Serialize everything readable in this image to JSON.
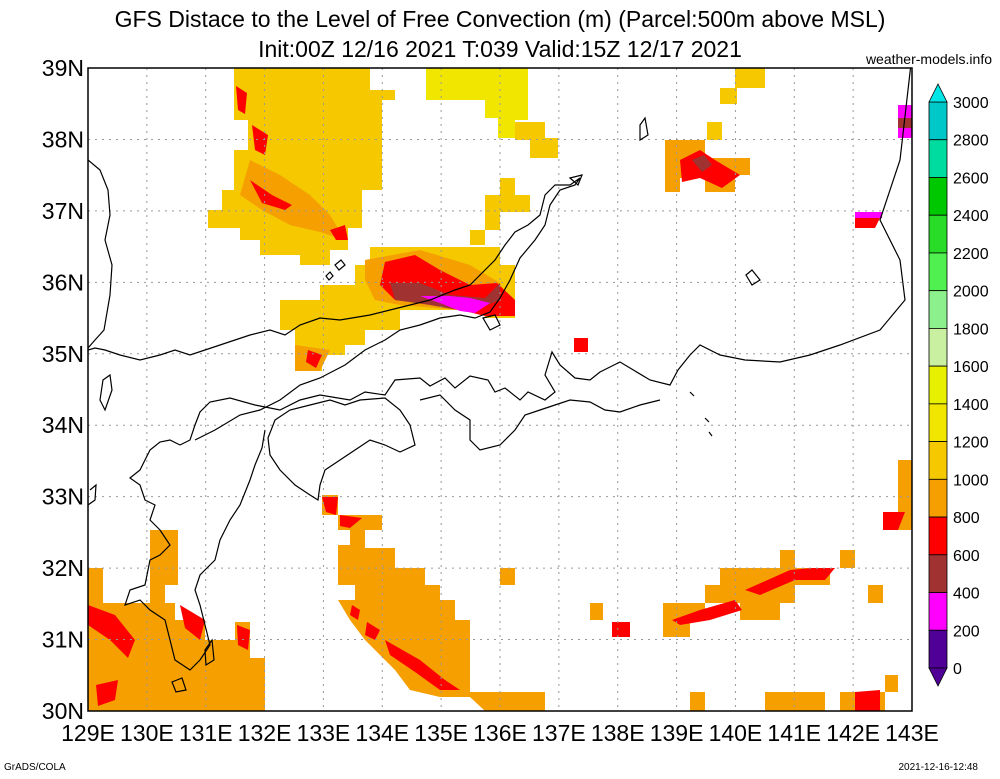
{
  "title": {
    "line1": "GFS Distace to the Level of Free Convection (m) (Parcel:500m above MSL)",
    "line2": "Init:00Z 12/16 2021 T:039 Valid:15Z 12/17 2021",
    "credit": "weather-models.info"
  },
  "footer": {
    "left": "GrADS/COLA",
    "right": "2021-12-16-12:48"
  },
  "map": {
    "lat_labels": [
      "39N",
      "38N",
      "37N",
      "36N",
      "35N",
      "34N",
      "33N",
      "32N",
      "31N",
      "30N"
    ],
    "lon_labels": [
      "129E",
      "130E",
      "131E",
      "132E",
      "133E",
      "134E",
      "135E",
      "136E",
      "137E",
      "138E",
      "139E",
      "140E",
      "141E",
      "142E",
      "143E"
    ],
    "lon_range": [
      129,
      143
    ],
    "lat_range": [
      30,
      39
    ]
  },
  "colorbar": {
    "labels": [
      "3000",
      "2800",
      "2600",
      "2400",
      "2200",
      "2000",
      "1800",
      "1600",
      "1400",
      "1200",
      "1000",
      "800",
      "600",
      "400",
      "200",
      "0"
    ],
    "colors": [
      "#00e6e6",
      "#00c8c8",
      "#00dca0",
      "#00c800",
      "#28dc28",
      "#50f050",
      "#8cf08c",
      "#c8f0a0",
      "#e6f000",
      "#f0e600",
      "#f5c800",
      "#f5a000",
      "#ff0000",
      "#a03232",
      "#ff00ff",
      "#500096"
    ]
  }
}
